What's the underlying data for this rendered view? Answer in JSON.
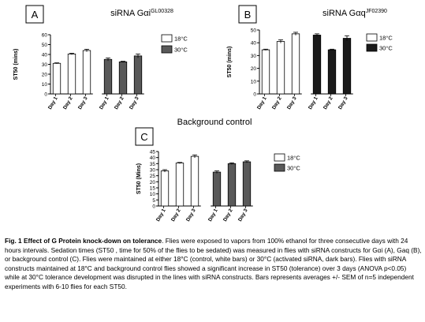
{
  "chart_data": [
    {
      "panel_letter": "A",
      "type": "bar",
      "title_base": "siRNA Gαi",
      "title_sup": "GL00328",
      "ylabel": "ST50 (mins)",
      "ylim": [
        0,
        60
      ],
      "yticks": [
        0,
        10,
        20,
        30,
        40,
        50,
        60
      ],
      "groups": [
        {
          "name": "18°C",
          "style": "white",
          "categories": [
            "Day 1",
            "Day 2",
            "Day 3"
          ],
          "values": [
            31,
            40.5,
            44
          ],
          "errors": [
            0.5,
            0.7,
            1.3
          ]
        },
        {
          "name": "30°C",
          "style": "dark",
          "categories": [
            "Day 1",
            "Day 2",
            "Day 3"
          ],
          "values": [
            35,
            32.5,
            38.5
          ],
          "errors": [
            1.5,
            0.6,
            2
          ]
        }
      ]
    },
    {
      "panel_letter": "B",
      "type": "bar",
      "title_base": "siRNA Gαq",
      "title_sup": "JF02390",
      "ylabel": "ST50 (mins)",
      "ylim": [
        0,
        50
      ],
      "yticks": [
        0,
        10,
        20,
        30,
        40,
        50
      ],
      "groups": [
        {
          "name": "18°C",
          "style": "white",
          "categories": [
            "Day 1",
            "Day 2",
            "Day 3"
          ],
          "values": [
            34.5,
            41,
            47
          ],
          "errors": [
            0.5,
            1.3,
            1.2
          ]
        },
        {
          "name": "30°C",
          "style": "black",
          "categories": [
            "Day 1",
            "Day 2",
            "Day 3"
          ],
          "values": [
            46,
            34.5,
            43.5
          ],
          "errors": [
            1,
            0.5,
            2
          ]
        }
      ]
    },
    {
      "panel_letter": "C",
      "type": "bar",
      "title_base": "Background control",
      "title_sup": "",
      "ylabel": "ST50 (Mins)",
      "ylim": [
        0,
        45
      ],
      "yticks": [
        0,
        5,
        10,
        15,
        20,
        25,
        30,
        35,
        40,
        45
      ],
      "groups": [
        {
          "name": "18°C",
          "style": "white",
          "categories": [
            "Day 1",
            "Day 2",
            "Day 3"
          ],
          "values": [
            29,
            35.5,
            41
          ],
          "errors": [
            1,
            0.5,
            1.2
          ]
        },
        {
          "name": "30°C",
          "style": "dark",
          "categories": [
            "Day 1",
            "Day 2",
            "Day 3"
          ],
          "values": [
            28,
            35,
            36.5
          ],
          "errors": [
            1,
            0.7,
            0.8
          ]
        }
      ]
    }
  ],
  "colors": {
    "white_bar": "#ffffff",
    "dark_bar": "#595959",
    "black_bar": "#1a1a1a",
    "axis": "#000000"
  },
  "caption": {
    "title": "Fig. 1 Effect of G Protein knock-down on tolerance",
    "body": ". Flies were exposed to vapors from 100% ethanol for three consecutive  days with 24 hours intervals. Sedation times (ST50 , time for 50% of the flies to be sedated) was measured in flies with siRNA constructs for Gαi (A), Gaq (B), or background control (C). Flies were maintained at either 18°C (control, white bars) or 30°C (activated siRNA, dark bars). Flies with siRNA constructs maintained at 18°C and background control flies showed a significant increase in ST50 (tolerance) over 3 days (ANOVA p<0.05) while at 30°C tolerance development was disrupted in the lines with siRNA constructs. Bars represents averages +/- SEM of n=5 independent experiments with 6-10 flies for each ST50."
  }
}
